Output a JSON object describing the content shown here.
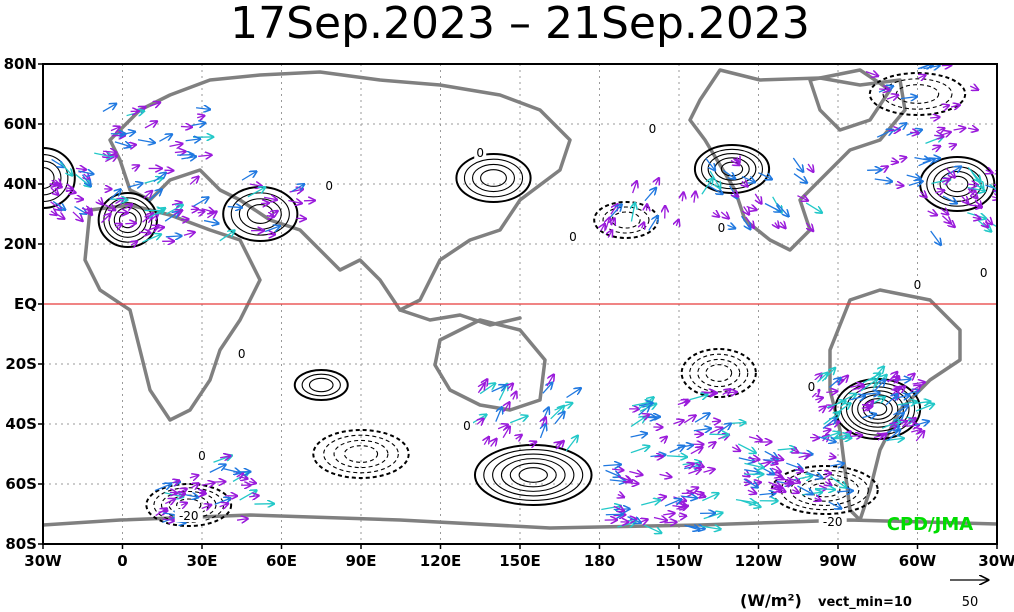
{
  "chart_data": {
    "type": "vector-contour-map",
    "title": "17Sep.2023 – 21Sep.2023",
    "credit": "CPD/JMA",
    "units": "(W/m²)",
    "vector_min_note": "vect_min=10",
    "reference_vector_value": "50",
    "x_ticks": [
      "30W",
      "0",
      "30E",
      "60E",
      "90E",
      "120E",
      "150E",
      "180",
      "150W",
      "120W",
      "90W",
      "60W",
      "30W"
    ],
    "y_ticks": [
      "80N",
      "60N",
      "40N",
      "20N",
      "EQ",
      "20S",
      "40S",
      "60S",
      "80S"
    ],
    "lon_range": [
      -30,
      330
    ],
    "lat_range": [
      -80,
      80
    ],
    "grid": "dotted",
    "equator_line": "red",
    "contour_labels": [
      {
        "text": "0",
        "lon": 78,
        "lat": 39
      },
      {
        "text": "0",
        "lon": 135,
        "lat": 50
      },
      {
        "text": "0",
        "lon": 200,
        "lat": 58
      },
      {
        "text": "0",
        "lon": 226,
        "lat": 25
      },
      {
        "text": "0",
        "lon": 300,
        "lat": 6
      },
      {
        "text": "0",
        "lon": 325,
        "lat": 10
      },
      {
        "text": "0",
        "lon": 260,
        "lat": -28
      },
      {
        "text": "0",
        "lon": 45,
        "lat": -17
      },
      {
        "text": "0",
        "lon": 170,
        "lat": 22
      },
      {
        "text": "0",
        "lon": 30,
        "lat": -51
      },
      {
        "text": "0",
        "lon": 130,
        "lat": -41
      },
      {
        "text": "-20",
        "lon": 25,
        "lat": -71
      },
      {
        "text": "-20",
        "lon": 268,
        "lat": -73
      }
    ],
    "vector_colors": {
      "weak": "#9a1adb",
      "medium": "#1f78e0",
      "strong": "#22c8c8"
    },
    "contour_centers": [
      {
        "lon": -30,
        "lat": 42,
        "sign": 1,
        "amp": 20,
        "rx": 12,
        "ry": 10
      },
      {
        "lon": 2,
        "lat": 28,
        "sign": 1,
        "amp": 25,
        "rx": 11,
        "ry": 9
      },
      {
        "lon": 52,
        "lat": 30,
        "sign": 1,
        "amp": 20,
        "rx": 14,
        "ry": 9
      },
      {
        "lon": 140,
        "lat": 42,
        "sign": 1,
        "amp": 20,
        "rx": 14,
        "ry": 8
      },
      {
        "lon": 230,
        "lat": 45,
        "sign": 1,
        "amp": 25,
        "rx": 14,
        "ry": 8
      },
      {
        "lon": 315,
        "lat": 40,
        "sign": 1,
        "amp": 25,
        "rx": 14,
        "ry": 9
      },
      {
        "lon": 155,
        "lat": -57,
        "sign": 1,
        "amp": 30,
        "rx": 22,
        "ry": 10
      },
      {
        "lon": 75,
        "lat": -27,
        "sign": 1,
        "amp": 15,
        "rx": 10,
        "ry": 5
      },
      {
        "lon": 225,
        "lat": -23,
        "sign": -1,
        "amp": 20,
        "rx": 14,
        "ry": 8
      },
      {
        "lon": 285,
        "lat": -35,
        "sign": 1,
        "amp": 35,
        "rx": 16,
        "ry": 10
      },
      {
        "lon": 25,
        "lat": -67,
        "sign": -1,
        "amp": 25,
        "rx": 16,
        "ry": 7
      },
      {
        "lon": 265,
        "lat": -62,
        "sign": -1,
        "amp": 25,
        "rx": 20,
        "ry": 8
      },
      {
        "lon": 90,
        "lat": -50,
        "sign": -1,
        "amp": 20,
        "rx": 18,
        "ry": 8
      },
      {
        "lon": 300,
        "lat": 70,
        "sign": -1,
        "amp": 15,
        "rx": 18,
        "ry": 7
      },
      {
        "lon": 190,
        "lat": 28,
        "sign": -1,
        "amp": 15,
        "rx": 12,
        "ry": 6
      }
    ]
  }
}
